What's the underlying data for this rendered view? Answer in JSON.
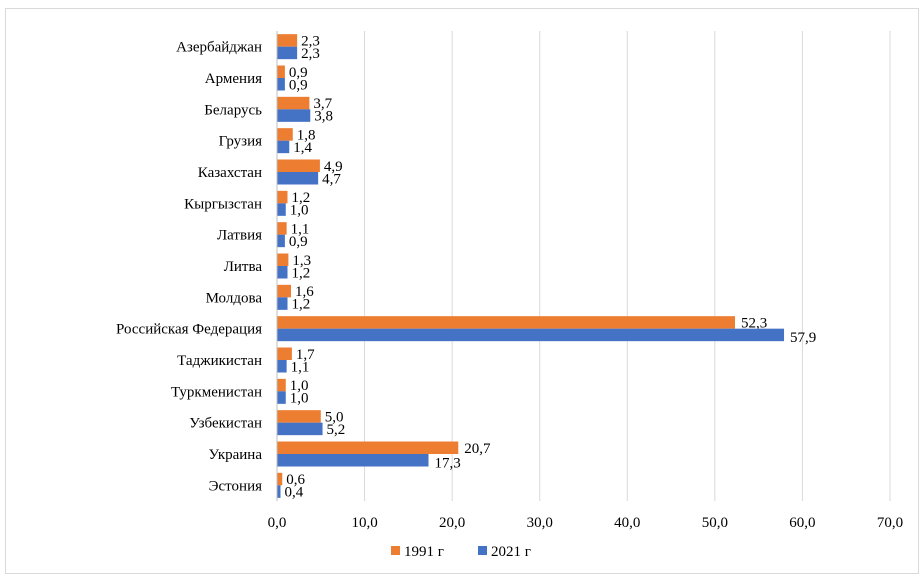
{
  "chart_data": {
    "type": "bar",
    "orientation": "horizontal",
    "categories": [
      "Азербайджан",
      "Армения",
      "Беларусь",
      "Грузия",
      "Казахстан",
      "Кыргызстан",
      "Латвия",
      "Литва",
      "Молдова",
      "Российская Федерация",
      "Таджикистан",
      "Туркменистан",
      "Узбекистан",
      "Украина",
      "Эстония"
    ],
    "series": [
      {
        "name": "1991 г",
        "color": "#ed7d31",
        "values": [
          2.3,
          0.9,
          3.7,
          1.8,
          4.9,
          1.2,
          1.1,
          1.3,
          1.6,
          52.3,
          1.7,
          1.0,
          5.0,
          20.7,
          0.6
        ],
        "labels": [
          "2,3",
          "0,9",
          "3,7",
          "1,8",
          "4,9",
          "1,2",
          "1,1",
          "1,3",
          "1,6",
          "52,3",
          "1,7",
          "1,0",
          "5,0",
          "20,7",
          "0,6"
        ]
      },
      {
        "name": "2021 г",
        "color": "#4472c4",
        "values": [
          2.3,
          0.9,
          3.8,
          1.4,
          4.7,
          1.0,
          0.9,
          1.2,
          1.2,
          57.9,
          1.1,
          1.0,
          5.2,
          17.3,
          0.4
        ],
        "labels": [
          "2,3",
          "0,9",
          "3,8",
          "1,4",
          "4,7",
          "1,0",
          "0,9",
          "1,2",
          "1,2",
          "57,9",
          "1,1",
          "1,0",
          "5,2",
          "17,3",
          "0,4"
        ]
      }
    ],
    "xlim": [
      0,
      70
    ],
    "xticks": [
      0,
      10,
      20,
      30,
      40,
      50,
      60,
      70
    ],
    "xtick_labels": [
      "0,0",
      "10,0",
      "20,0",
      "30,0",
      "40,0",
      "50,0",
      "60,0",
      "70,0"
    ],
    "grid": true,
    "legend_position": "bottom",
    "title": "",
    "xlabel": "",
    "ylabel": ""
  }
}
